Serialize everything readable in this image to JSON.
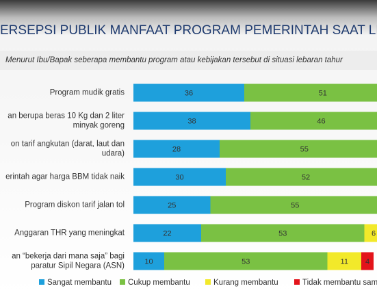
{
  "chart_data": {
    "type": "stacked-barh",
    "title": "ERSEPSI PUBLIK MANFAAT PROGRAM PEMERINTAH SAAT LEBAR",
    "subtitle": "Menurut Ibu/Bapak seberapa membantu program atau kebijakan tersebut di situasi lebaran tahur",
    "categories": [
      "Program mudik gratis",
      "an berupa beras 10 Kg dan 2 liter\nminyak goreng",
      "on tarif angkutan (darat, laut dan\nudara)",
      "erintah agar harga BBM tidak naik",
      "Program diskon tarif jalan tol",
      "Anggaran THR yang meningkat",
      "an “bekerja dari mana saja” bagi\nparatur Sipil Negara (ASN)"
    ],
    "series": [
      {
        "name": "Sangat membantu",
        "color": "#1ea0dc",
        "values": [
          36,
          38,
          28,
          30,
          25,
          22,
          10
        ]
      },
      {
        "name": "Cukup membantu",
        "color": "#7ac143",
        "values": [
          51,
          46,
          55,
          52,
          55,
          53,
          53
        ]
      },
      {
        "name": "Kurang membantu",
        "color": "#f2e92a",
        "values": [
          null,
          null,
          null,
          null,
          null,
          6,
          11
        ]
      },
      {
        "name": "Tidak membantu sam",
        "color": "#e3141b",
        "values": [
          null,
          null,
          null,
          null,
          null,
          null,
          4
        ]
      }
    ],
    "xlim": [
      0,
      100
    ]
  }
}
